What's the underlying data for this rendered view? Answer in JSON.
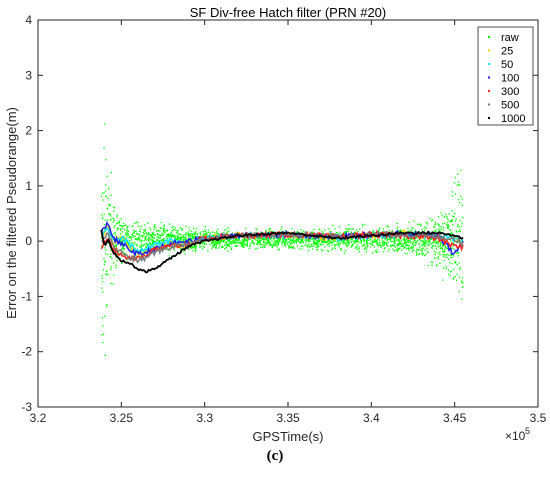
{
  "chart_data": {
    "type": "line",
    "title": "SF Div-free Hatch filter (PRN #20)",
    "xlabel": "GPSTime(s)",
    "ylabel": "Error on the filtered Pseudorange(m)",
    "x_exponent_label": "×10",
    "x_exponent_power": "5",
    "xlim": [
      3.2,
      3.5
    ],
    "ylim": [
      -3,
      4
    ],
    "x_ticks": [
      "3.2",
      "3.25",
      "3.3",
      "3.35",
      "3.4",
      "3.45",
      "3.5"
    ],
    "y_ticks": [
      "-3",
      "-2",
      "-1",
      "0",
      "1",
      "2",
      "3",
      "4"
    ],
    "grid": false,
    "legend_position": "top-right",
    "series": [
      {
        "name": "raw",
        "color": "#00ff00",
        "style": "points",
        "x": [
          3.238,
          3.24,
          3.242,
          3.245,
          3.25,
          3.26,
          3.27,
          3.28,
          3.3,
          3.32,
          3.35,
          3.38,
          3.4,
          3.42,
          3.44,
          3.45,
          3.452,
          3.455
        ],
        "y_spread": [
          2.6,
          2.9,
          2.2,
          1.2,
          0.6,
          0.45,
          0.4,
          0.35,
          0.25,
          0.25,
          0.25,
          0.3,
          0.3,
          0.35,
          0.7,
          1.4,
          2.0,
          2.6
        ]
      },
      {
        "name": "25",
        "color": "#ffd700",
        "x": [
          3.238,
          3.242,
          3.245,
          3.25,
          3.255,
          3.26,
          3.265,
          3.27,
          3.28,
          3.29,
          3.3,
          3.32,
          3.35,
          3.38,
          3.4,
          3.42,
          3.44,
          3.45,
          3.455
        ],
        "y": [
          0.05,
          0.3,
          -0.1,
          0.1,
          -0.1,
          -0.25,
          -0.2,
          -0.1,
          -0.05,
          -0.1,
          0.05,
          0.1,
          0.12,
          0.05,
          0.1,
          0.15,
          0.05,
          0.1,
          -0.05
        ]
      },
      {
        "name": "50",
        "color": "#00e5ff",
        "x": [
          3.238,
          3.242,
          3.245,
          3.25,
          3.255,
          3.26,
          3.265,
          3.27,
          3.28,
          3.29,
          3.3,
          3.32,
          3.35,
          3.38,
          3.4,
          3.42,
          3.44,
          3.45,
          3.455
        ],
        "y": [
          0.1,
          0.25,
          0.0,
          0.05,
          -0.05,
          -0.2,
          -0.15,
          -0.05,
          0.0,
          -0.05,
          0.05,
          0.1,
          0.12,
          0.05,
          0.1,
          0.12,
          0.1,
          0.05,
          0.0
        ]
      },
      {
        "name": "100",
        "color": "#1e1ee6",
        "x": [
          3.238,
          3.242,
          3.245,
          3.25,
          3.255,
          3.26,
          3.265,
          3.27,
          3.28,
          3.29,
          3.3,
          3.32,
          3.35,
          3.38,
          3.4,
          3.42,
          3.44,
          3.45,
          3.455
        ],
        "y": [
          0.15,
          0.35,
          0.05,
          -0.05,
          -0.15,
          -0.25,
          -0.2,
          -0.15,
          -0.05,
          0.0,
          0.05,
          0.1,
          0.12,
          0.08,
          0.12,
          0.15,
          0.1,
          -0.25,
          0.0
        ]
      },
      {
        "name": "300",
        "color": "#ff1e1e",
        "x": [
          3.238,
          3.242,
          3.245,
          3.25,
          3.255,
          3.26,
          3.265,
          3.27,
          3.28,
          3.29,
          3.3,
          3.32,
          3.35,
          3.38,
          3.4,
          3.42,
          3.44,
          3.45,
          3.455
        ],
        "y": [
          -0.1,
          0.1,
          -0.15,
          -0.25,
          -0.3,
          -0.3,
          -0.25,
          -0.15,
          -0.1,
          -0.05,
          0.05,
          0.1,
          0.12,
          0.08,
          0.12,
          0.1,
          0.05,
          -0.1,
          -0.1
        ]
      },
      {
        "name": "500",
        "color": "#7a7a7a",
        "x": [
          3.238,
          3.242,
          3.245,
          3.25,
          3.255,
          3.26,
          3.265,
          3.27,
          3.28,
          3.29,
          3.3,
          3.32,
          3.35,
          3.38,
          3.4,
          3.42,
          3.44,
          3.45,
          3.455
        ],
        "y": [
          0.0,
          0.15,
          -0.1,
          -0.2,
          -0.3,
          -0.35,
          -0.3,
          -0.2,
          -0.1,
          -0.05,
          0.05,
          0.1,
          0.12,
          0.08,
          0.12,
          0.12,
          0.08,
          0.05,
          -0.05
        ]
      },
      {
        "name": "1000",
        "color": "#000000",
        "x": [
          3.238,
          3.24,
          3.242,
          3.245,
          3.25,
          3.255,
          3.26,
          3.265,
          3.27,
          3.28,
          3.29,
          3.3,
          3.32,
          3.35,
          3.38,
          3.4,
          3.42,
          3.44,
          3.45,
          3.455
        ],
        "y": [
          0.2,
          -0.1,
          0.05,
          -0.2,
          -0.35,
          -0.4,
          -0.5,
          -0.55,
          -0.5,
          -0.3,
          -0.1,
          0.0,
          0.1,
          0.15,
          0.05,
          0.1,
          0.15,
          0.15,
          0.1,
          0.05
        ]
      }
    ]
  },
  "caption": "(c)"
}
